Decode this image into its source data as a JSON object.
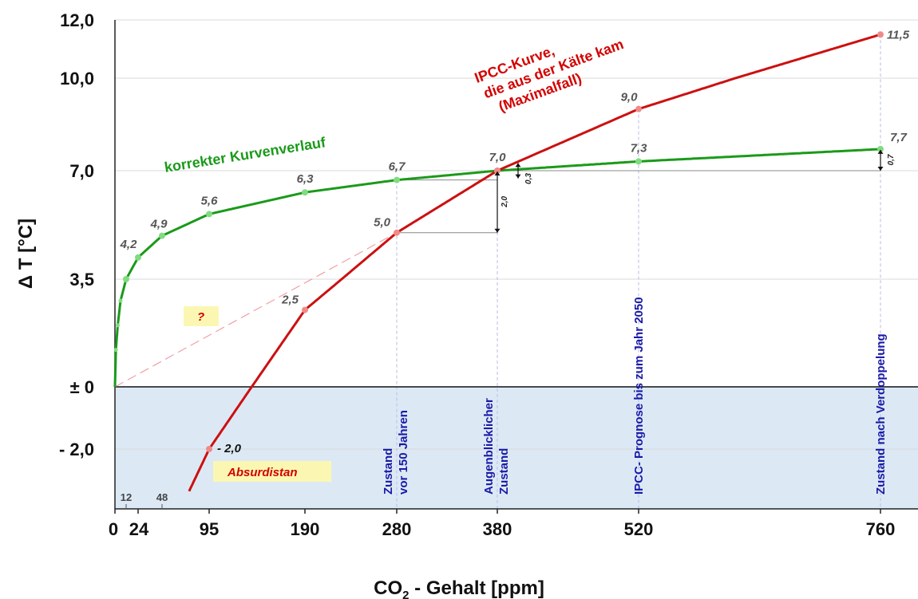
{
  "chart_data": {
    "type": "line",
    "xlabel": "CO",
    "xlabel_sub": "2",
    "xlabel_rest": " - Gehalt [ppm]",
    "ylabel": "Δ T [°C]",
    "x_ticks": [
      "0",
      "24",
      "95",
      "190",
      "280",
      "380",
      "520",
      "760"
    ],
    "x_minor_ticks": [
      "12",
      "48"
    ],
    "y_ticks": [
      {
        "value": 12.0,
        "label": "12,0"
      },
      {
        "value": 10.0,
        "label": "10,0"
      },
      {
        "value": 7.0,
        "label": "7,0"
      },
      {
        "value": 3.5,
        "label": "3,5"
      },
      {
        "value": 0,
        "label": "± 0"
      },
      {
        "value": -2.0,
        "label": "- 2,0"
      }
    ],
    "series": [
      {
        "name": "korrekter Kurvenverlauf",
        "color": "#1a9a1a",
        "points": [
          {
            "x": 12,
            "y": 3.5,
            "label": ""
          },
          {
            "x": 24,
            "y": 4.2,
            "label": "4,2"
          },
          {
            "x": 48,
            "y": 4.9,
            "label": "4,9"
          },
          {
            "x": 95,
            "y": 5.6,
            "label": "5,6"
          },
          {
            "x": 190,
            "y": 6.3,
            "label": "6,3"
          },
          {
            "x": 280,
            "y": 6.7,
            "label": "6,7"
          },
          {
            "x": 380,
            "y": 7.0,
            "label": "7,0"
          },
          {
            "x": 520,
            "y": 7.3,
            "label": "7,3"
          },
          {
            "x": 760,
            "y": 7.7,
            "label": "7,7"
          }
        ]
      },
      {
        "name_line1": "IPCC-Kurve,",
        "name_line2": "die aus der Kälte kam",
        "name_line3": "(Maximalfall)",
        "color": "#d40000",
        "points": [
          {
            "x": 95,
            "y": -2.0,
            "label": "- 2,0"
          },
          {
            "x": 190,
            "y": 2.5,
            "label": "2,5"
          },
          {
            "x": 280,
            "y": 5.0,
            "label": "5,0"
          },
          {
            "x": 380,
            "y": 7.0,
            "label": ""
          },
          {
            "x": 520,
            "y": 9.0,
            "label": "9,0"
          },
          {
            "x": 760,
            "y": 11.5,
            "label": "11,5"
          }
        ]
      }
    ],
    "vertical_markers": [
      {
        "x": 280,
        "line1": "Zustand",
        "line2": "vor 150 Jahren"
      },
      {
        "x": 380,
        "line1": "Augenblicklicher",
        "line2": "Zustand"
      },
      {
        "x": 520,
        "line1": "IPCC- Prognose bis zum Jahr 2050",
        "line2": ""
      },
      {
        "x": 760,
        "line1": "Zustand nach Verdoppelung",
        "line2": ""
      }
    ],
    "differences": [
      {
        "label": "2,0"
      },
      {
        "label": "0,3"
      },
      {
        "label": "0,7"
      }
    ],
    "question_label": "?",
    "absurd_label": "Absurdistan"
  }
}
